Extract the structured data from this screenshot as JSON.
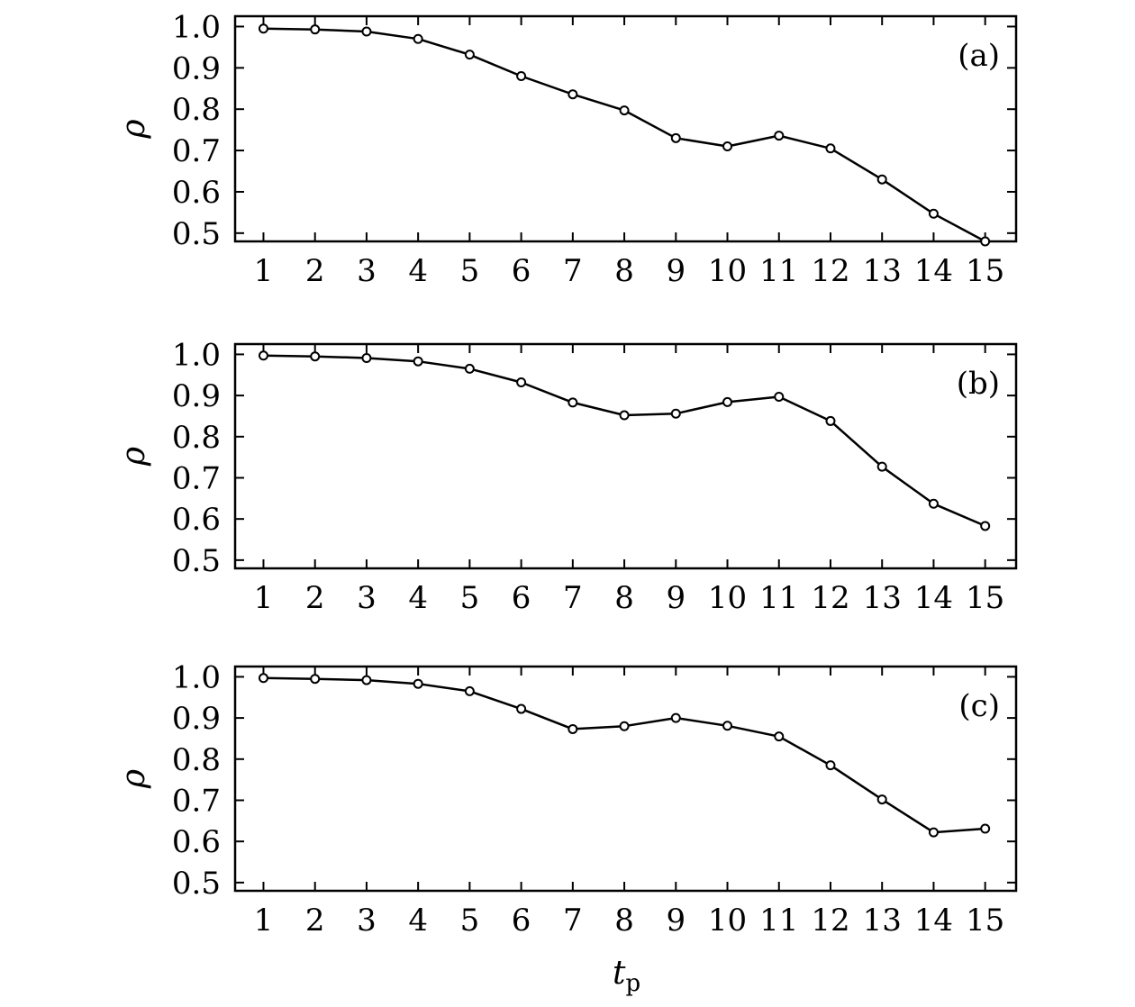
{
  "figure": {
    "xlabel": "t",
    "xlabel_sub": "p",
    "xlabel_combined": "tp"
  },
  "chart_data": [
    {
      "type": "line",
      "panel_label": "(a)",
      "ylabel": "ρ",
      "x": [
        1,
        2,
        3,
        4,
        5,
        6,
        7,
        8,
        9,
        10,
        11,
        12,
        13,
        14,
        15
      ],
      "series": [
        {
          "values": [
            0.995,
            0.993,
            0.988,
            0.97,
            0.932,
            0.88,
            0.836,
            0.797,
            0.73,
            0.71,
            0.736,
            0.705,
            0.63,
            0.547,
            0.48
          ]
        }
      ],
      "marker": "open-circle",
      "color": "#000000",
      "xticks": [
        "1",
        "2",
        "3",
        "4",
        "5",
        "6",
        "7",
        "8",
        "9",
        "10",
        "11",
        "12",
        "13",
        "14",
        "15"
      ],
      "yticks": [
        "0.5",
        "0.6",
        "0.7",
        "0.8",
        "0.9",
        "1.0"
      ],
      "xlim": [
        0.45,
        15.6
      ],
      "ylim": [
        0.48,
        1.025
      ],
      "grid": false
    },
    {
      "type": "line",
      "panel_label": "(b)",
      "ylabel": "ρ",
      "x": [
        1,
        2,
        3,
        4,
        5,
        6,
        7,
        8,
        9,
        10,
        11,
        12,
        13,
        14,
        15
      ],
      "series": [
        {
          "values": [
            0.997,
            0.995,
            0.991,
            0.983,
            0.965,
            0.932,
            0.883,
            0.852,
            0.856,
            0.884,
            0.897,
            0.838,
            0.727,
            0.637,
            0.583
          ]
        }
      ],
      "marker": "open-circle",
      "color": "#000000",
      "xticks": [
        "1",
        "2",
        "3",
        "4",
        "5",
        "6",
        "7",
        "8",
        "9",
        "10",
        "11",
        "12",
        "13",
        "14",
        "15"
      ],
      "yticks": [
        "0.5",
        "0.6",
        "0.7",
        "0.8",
        "0.9",
        "1.0"
      ],
      "xlim": [
        0.45,
        15.6
      ],
      "ylim": [
        0.48,
        1.025
      ],
      "grid": false
    },
    {
      "type": "line",
      "panel_label": "(c)",
      "ylabel": "ρ",
      "x": [
        1,
        2,
        3,
        4,
        5,
        6,
        7,
        8,
        9,
        10,
        11,
        12,
        13,
        14,
        15
      ],
      "series": [
        {
          "values": [
            0.997,
            0.995,
            0.992,
            0.983,
            0.965,
            0.922,
            0.873,
            0.88,
            0.9,
            0.881,
            0.855,
            0.785,
            0.702,
            0.622,
            0.631
          ]
        }
      ],
      "marker": "open-circle",
      "color": "#000000",
      "xticks": [
        "1",
        "2",
        "3",
        "4",
        "5",
        "6",
        "7",
        "8",
        "9",
        "10",
        "11",
        "12",
        "13",
        "14",
        "15"
      ],
      "yticks": [
        "0.5",
        "0.6",
        "0.7",
        "0.8",
        "0.9",
        "1.0"
      ],
      "xlim": [
        0.45,
        15.6
      ],
      "ylim": [
        0.48,
        1.025
      ],
      "grid": false
    }
  ]
}
